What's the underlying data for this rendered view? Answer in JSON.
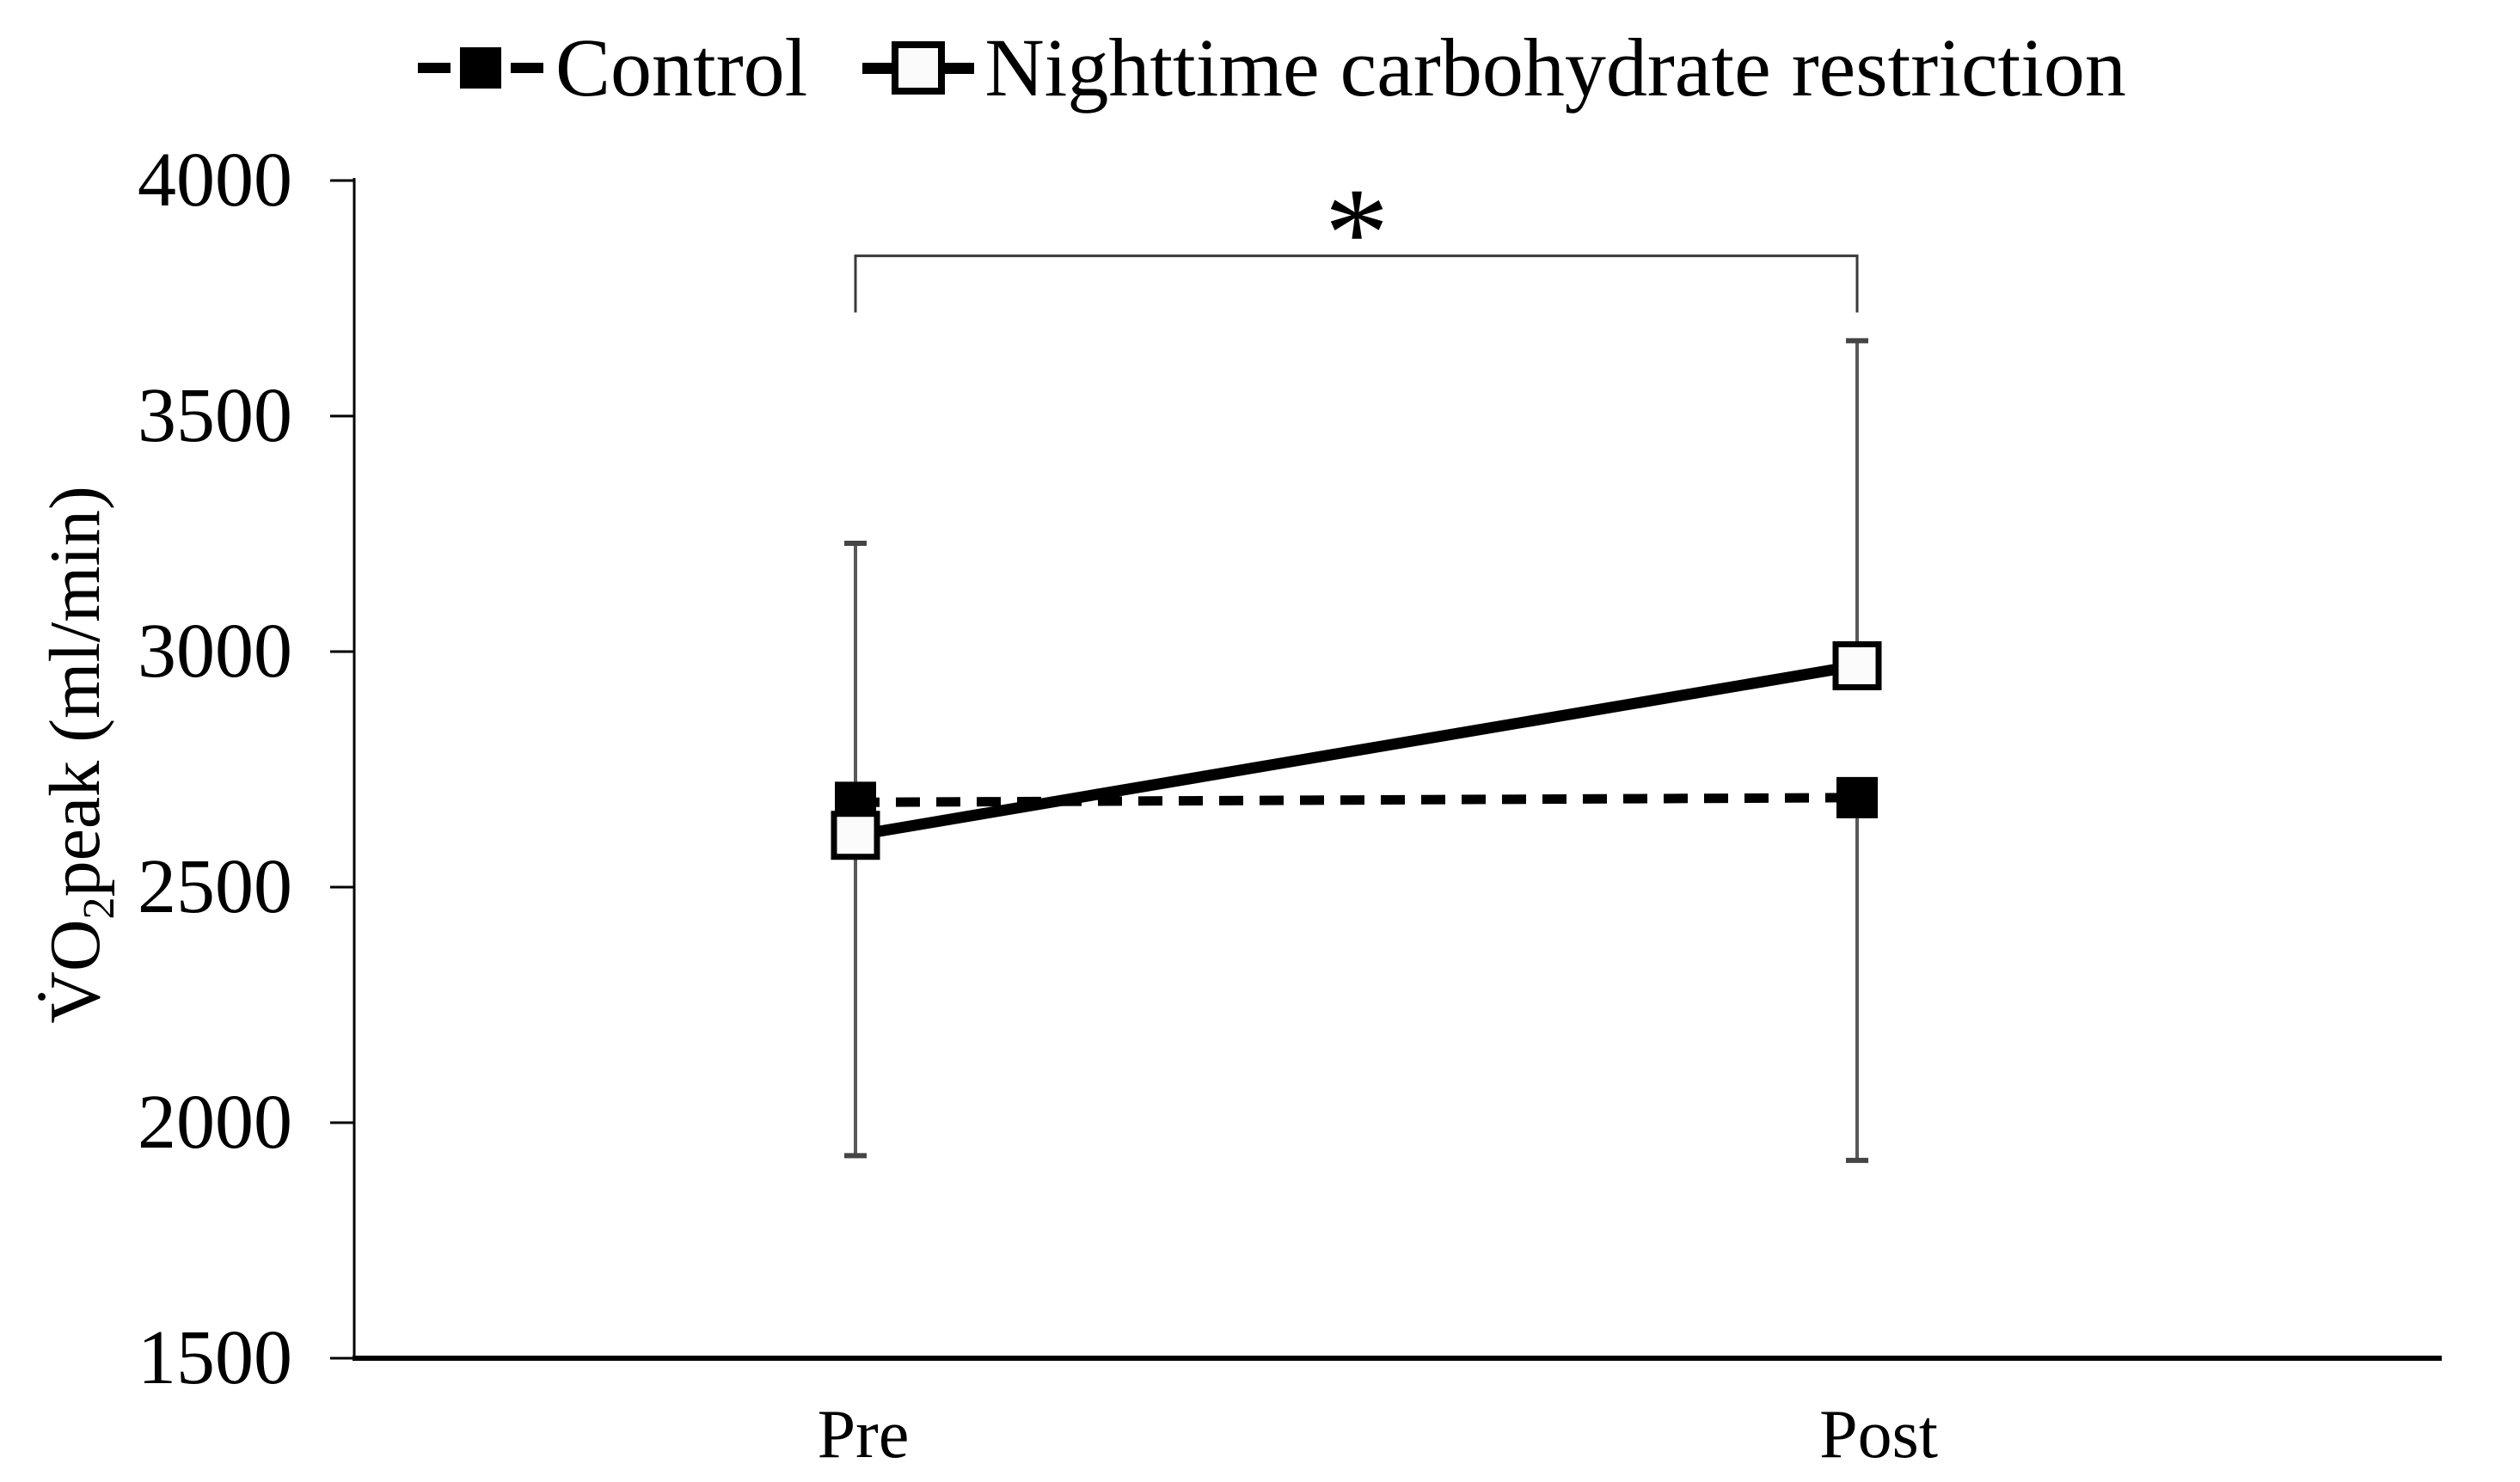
{
  "figure": {
    "background": "#ffffff",
    "ylabel_parts": {
      "main": "V̇O",
      "sub": "2",
      "rest": "peak (ml/min)"
    }
  },
  "chart_data": {
    "type": "line",
    "title": "",
    "categories": [
      "Pre",
      "Post"
    ],
    "series": [
      {
        "name": "Control",
        "values": [
          2680,
          2690
        ],
        "line_style": "dashed",
        "marker": "filled-square",
        "color": "#000000"
      },
      {
        "name": "Nighttime carbohydrate restriction",
        "values": [
          2610,
          2970
        ],
        "line_style": "solid",
        "marker": "open-square",
        "color": "#000000"
      }
    ],
    "error_bars": [
      {
        "category": "Pre",
        "from": 1930,
        "to": 3230,
        "caps": [
          "bottom",
          "top"
        ]
      },
      {
        "category": "Post",
        "from": 1920,
        "to": 2690,
        "caps": [
          "bottom"
        ]
      },
      {
        "category": "Post",
        "from": 2970,
        "to": 3660,
        "caps": [
          "top"
        ]
      }
    ],
    "significance_bracket": {
      "label": "*",
      "from": "Pre",
      "to": "Post",
      "y": 3840,
      "drop_to": 3720
    },
    "ylabel": "V̇O2peak (ml/min)",
    "xlabel": "",
    "ylim": [
      1500,
      4000
    ],
    "yticks": [
      4000,
      3500,
      3000,
      2500,
      2000,
      1500
    ],
    "grid": false,
    "legend_position": "top",
    "axis_color": "#000000",
    "error_bar_color": "#595959",
    "bracket_color": "#3a3a3a"
  }
}
